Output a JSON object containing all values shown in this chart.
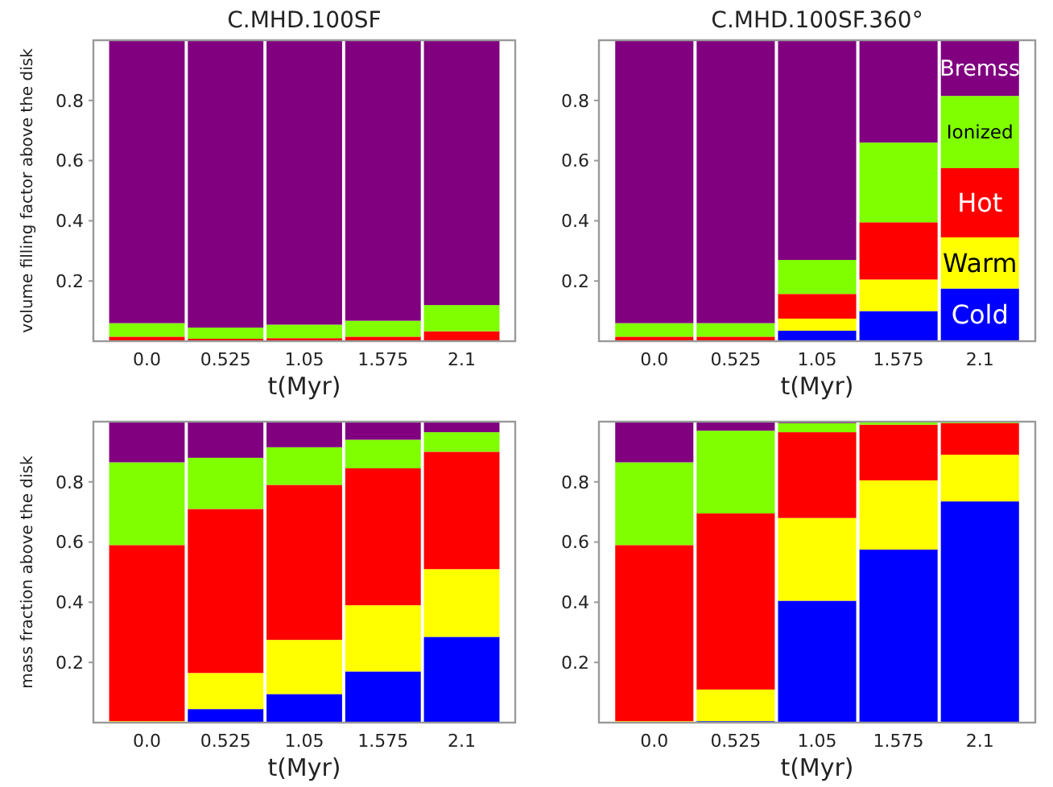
{
  "chart_data": [
    {
      "type": "bar",
      "stacked": true,
      "title": "C.MHD.100SF",
      "xlabel": "t(Myr)",
      "ylabel": "volume filling factor above the disk",
      "categories": [
        "0.0",
        "0.525",
        "1.05",
        "1.575",
        "2.1"
      ],
      "ylim": [
        0,
        1
      ],
      "yticks": [
        0.2,
        0.4,
        0.6,
        0.8
      ],
      "series": [
        {
          "color": "#0000ff",
          "values": [
            0,
            0,
            0,
            null,
            null
          ]
        },
        {
          "color": "#ffff00",
          "values": [
            0,
            0,
            0,
            0,
            0
          ]
        },
        {
          "color": "#ff0000",
          "values": [
            0.015,
            0.008,
            0.01,
            0.015,
            0.033
          ]
        },
        {
          "color": "#7fff00",
          "values": [
            0.045,
            0.037,
            0.045,
            0.053,
            0.087
          ]
        },
        {
          "color": "#800080",
          "values": [
            0.94,
            0.955,
            0.945,
            0.932,
            0.88
          ]
        }
      ]
    },
    {
      "type": "bar",
      "stacked": true,
      "title": "C.MHD.100SF.360°",
      "xlabel": "t(Myr)",
      "categories": [
        "0.0",
        "0.525",
        "1.05",
        "1.575",
        "2.1"
      ],
      "ylim": [
        0,
        1
      ],
      "yticks": [
        0.2,
        0.4,
        0.6,
        0.8
      ],
      "series": [
        {
          "name": "Cold",
          "color": "#0000ff",
          "values": [
            0,
            0,
            0.035,
            0.1,
            0.175
          ]
        },
        {
          "name": "Warm",
          "color": "#ffff00",
          "values": [
            0,
            0,
            0.04,
            0.105,
            0.17
          ]
        },
        {
          "name": "Hot",
          "color": "#ff0000",
          "values": [
            0.015,
            0.015,
            0.082,
            0.19,
            0.23
          ]
        },
        {
          "name": "Ionized",
          "color": "#7fff00",
          "values": [
            0.045,
            0.045,
            0.113,
            0.265,
            0.24
          ]
        },
        {
          "name": "Bremss",
          "color": "#800080",
          "values": [
            0.94,
            0.94,
            0.73,
            0.34,
            0.185
          ]
        }
      ]
    },
    {
      "type": "bar",
      "stacked": true,
      "xlabel": "t(Myr)",
      "ylabel": "mass fraction above the disk",
      "categories": [
        "0.0",
        "0.525",
        "1.05",
        "1.575",
        "2.1"
      ],
      "ylim": [
        0,
        1
      ],
      "yticks": [
        0.2,
        0.4,
        0.6,
        0.8
      ],
      "series": [
        {
          "color": "#0000ff",
          "values": [
            0,
            0.045,
            0.095,
            0.17,
            0.285
          ]
        },
        {
          "color": "#ffff00",
          "values": [
            0.005,
            0.12,
            0.18,
            0.22,
            0.225
          ]
        },
        {
          "color": "#ff0000",
          "values": [
            0.585,
            0.545,
            0.515,
            0.455,
            0.39
          ]
        },
        {
          "color": "#7fff00",
          "values": [
            0.275,
            0.17,
            0.125,
            0.095,
            0.065
          ]
        },
        {
          "color": "#800080",
          "values": [
            0.135,
            0.12,
            0.085,
            0.06,
            0.035
          ]
        }
      ]
    },
    {
      "type": "bar",
      "stacked": true,
      "xlabel": "t(Myr)",
      "categories": [
        "0.0",
        "0.525",
        "1.05",
        "1.575",
        "2.1"
      ],
      "ylim": [
        0,
        1
      ],
      "yticks": [
        0.2,
        0.4,
        0.6,
        0.8
      ],
      "series": [
        {
          "color": "#0000ff",
          "values": [
            0,
            0.005,
            0.405,
            0.575,
            0.735
          ]
        },
        {
          "color": "#ffff00",
          "values": [
            0.005,
            0.105,
            0.275,
            0.23,
            0.155
          ]
        },
        {
          "color": "#ff0000",
          "values": [
            0.585,
            0.585,
            0.285,
            0.185,
            0.105
          ]
        },
        {
          "color": "#7fff00",
          "values": [
            0.275,
            0.275,
            0.03,
            0.01,
            0.005
          ]
        },
        {
          "color": "#800080",
          "values": [
            0.135,
            0.03,
            0.005,
            0,
            0
          ]
        }
      ]
    }
  ]
}
